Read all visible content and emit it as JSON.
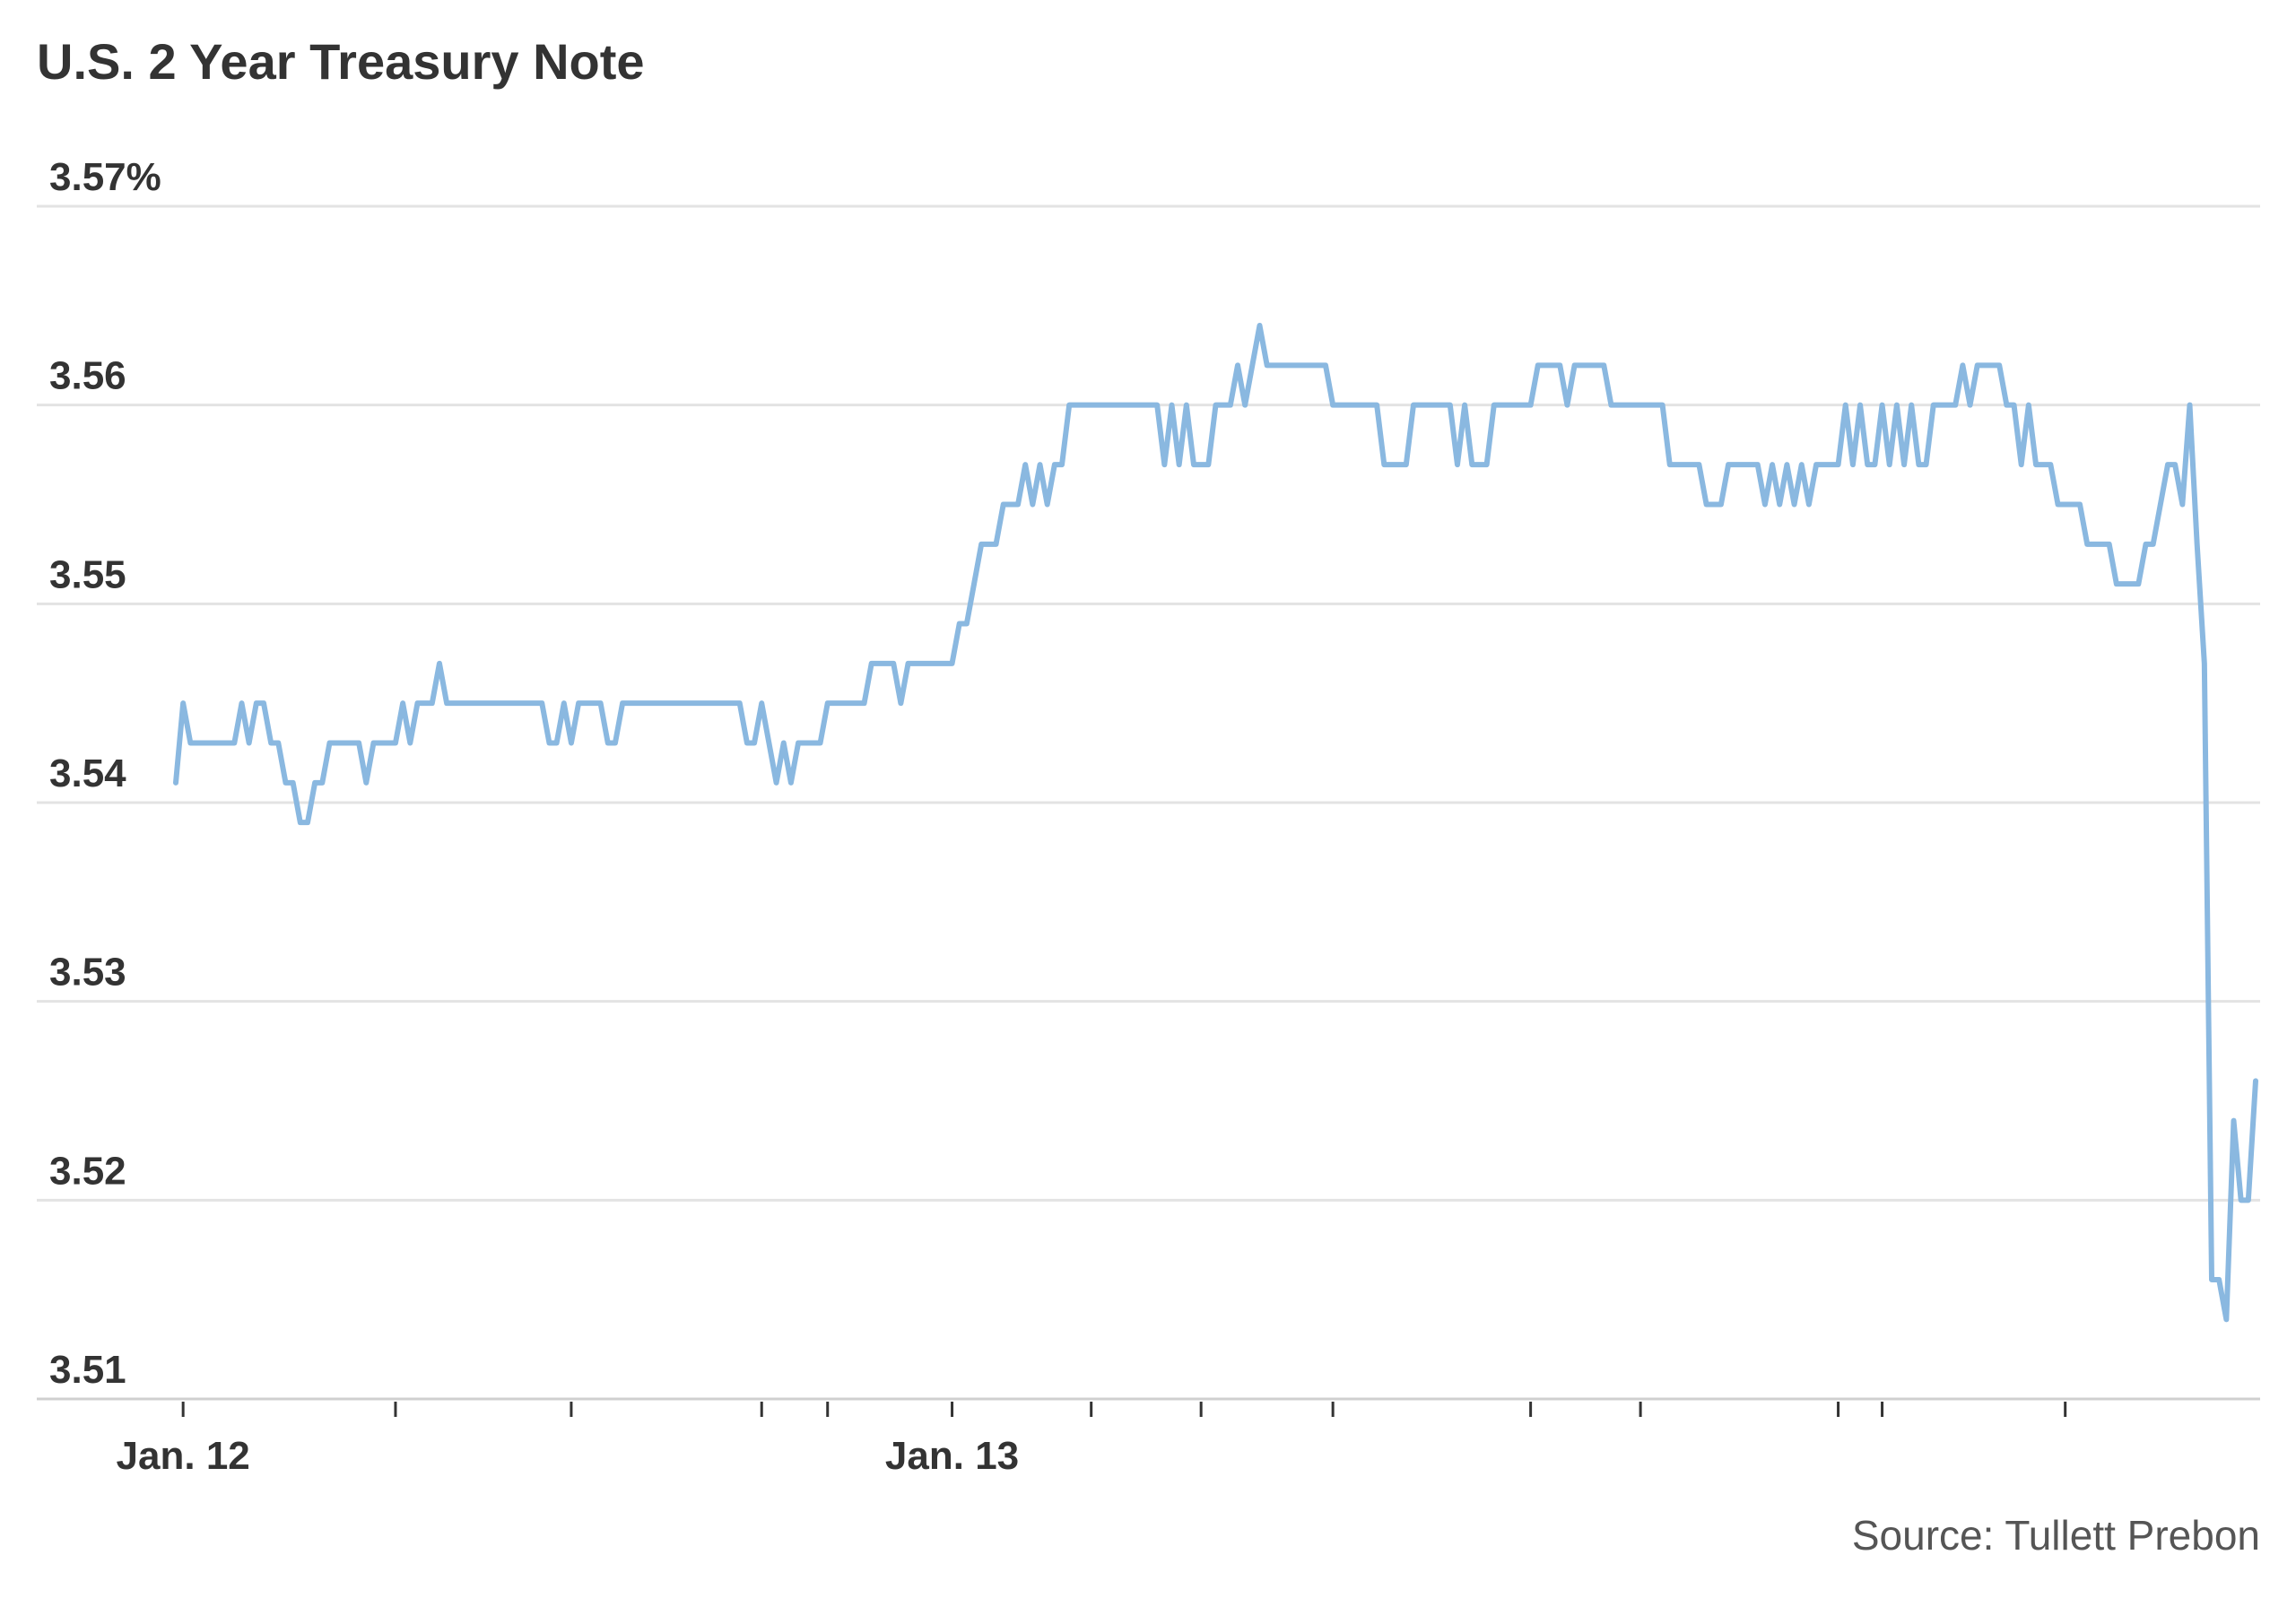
{
  "chart_data": {
    "type": "line",
    "title": "U.S. 2 Year Treasury Note",
    "source": "Source: Tullett Prebon",
    "categories": [
      null,
      "Jan. 12",
      null,
      null,
      null,
      null,
      null,
      null,
      null,
      null,
      null,
      null,
      null,
      null,
      null,
      null,
      null,
      null,
      null,
      null,
      null,
      null,
      null,
      null,
      null,
      null,
      null,
      null,
      null,
      null,
      null,
      null,
      null,
      null,
      null,
      null,
      null,
      null,
      null,
      null,
      null,
      null,
      null,
      null,
      null,
      null,
      null,
      null,
      null,
      null,
      null,
      null,
      null,
      null,
      null,
      null,
      null,
      null,
      null,
      null,
      null,
      null,
      null,
      null,
      null,
      null,
      null,
      null,
      null,
      null,
      null,
      null,
      null,
      null,
      null,
      null,
      null,
      null,
      null,
      null,
      null,
      null,
      null,
      null,
      null,
      null,
      null,
      null,
      null,
      null,
      null,
      null,
      null,
      null,
      null,
      null,
      null,
      null,
      null,
      null,
      null,
      null,
      null,
      null,
      null,
      null,
      "Jan. 13",
      null,
      null,
      null,
      null,
      null,
      null,
      null,
      null,
      null,
      null,
      null,
      null,
      null,
      null,
      null,
      null,
      null,
      null,
      null,
      null,
      null,
      null,
      null,
      null,
      null,
      null,
      null,
      null,
      null,
      null,
      null,
      null,
      null,
      null,
      null,
      null,
      null,
      null,
      null,
      null,
      null,
      null,
      null,
      null,
      null,
      null,
      null,
      null,
      null,
      null,
      null,
      null,
      null,
      null,
      null,
      null,
      null,
      null,
      null,
      null,
      null,
      null,
      null,
      null,
      null,
      null,
      null,
      null,
      null,
      null,
      null,
      null,
      null,
      null,
      null,
      null,
      null,
      null,
      null,
      null,
      null,
      null,
      null,
      null,
      null,
      null,
      null,
      null,
      null,
      null,
      null,
      null,
      null,
      null,
      null,
      null,
      null,
      null,
      null,
      null,
      null,
      null,
      null,
      null,
      null,
      null,
      null,
      null,
      null,
      null,
      null,
      null,
      null,
      null,
      null,
      null,
      null,
      null,
      null,
      null,
      null,
      null,
      null,
      null,
      null,
      null,
      null,
      null,
      null,
      null,
      null,
      null,
      null,
      null,
      null,
      null,
      null,
      null,
      null,
      null,
      null,
      null,
      null,
      null,
      null,
      null,
      null,
      null,
      null,
      null,
      null,
      null,
      null,
      null,
      null,
      null,
      null,
      null,
      null,
      null,
      null,
      null,
      null,
      null,
      null,
      null,
      null,
      null,
      null,
      null,
      null,
      null,
      null,
      null,
      null,
      null,
      null,
      null
    ],
    "xticks": [
      1,
      30,
      54,
      80,
      89,
      106,
      125,
      140,
      158,
      185,
      200,
      227,
      233,
      258
    ],
    "series": [
      {
        "name": "U.S. 2 Year Treasury Note",
        "color": "#8ab8e0",
        "values": [
          3.541,
          3.545,
          3.543,
          3.543,
          3.543,
          3.543,
          3.543,
          3.543,
          3.543,
          3.545,
          3.543,
          3.545,
          3.545,
          3.543,
          3.543,
          3.541,
          3.541,
          3.539,
          3.539,
          3.541,
          3.541,
          3.543,
          3.543,
          3.543,
          3.543,
          3.543,
          3.541,
          3.543,
          3.543,
          3.543,
          3.543,
          3.545,
          3.543,
          3.545,
          3.545,
          3.545,
          3.547,
          3.545,
          3.545,
          3.545,
          3.545,
          3.545,
          3.545,
          3.545,
          3.545,
          3.545,
          3.545,
          3.545,
          3.545,
          3.545,
          3.545,
          3.543,
          3.543,
          3.545,
          3.543,
          3.545,
          3.545,
          3.545,
          3.545,
          3.543,
          3.543,
          3.545,
          3.545,
          3.545,
          3.545,
          3.545,
          3.545,
          3.545,
          3.545,
          3.545,
          3.545,
          3.545,
          3.545,
          3.545,
          3.545,
          3.545,
          3.545,
          3.545,
          3.543,
          3.543,
          3.545,
          3.543,
          3.541,
          3.543,
          3.541,
          3.543,
          3.543,
          3.543,
          3.543,
          3.545,
          3.545,
          3.545,
          3.545,
          3.545,
          3.545,
          3.547,
          3.547,
          3.547,
          3.547,
          3.545,
          3.547,
          3.547,
          3.547,
          3.547,
          3.547,
          3.547,
          3.547,
          3.549,
          3.549,
          3.551,
          3.553,
          3.553,
          3.553,
          3.555,
          3.555,
          3.555,
          3.557,
          3.555,
          3.557,
          3.555,
          3.557,
          3.557,
          3.56,
          3.56,
          3.56,
          3.56,
          3.56,
          3.56,
          3.56,
          3.56,
          3.56,
          3.56,
          3.56,
          3.56,
          3.56,
          3.557,
          3.56,
          3.557,
          3.56,
          3.557,
          3.557,
          3.557,
          3.56,
          3.56,
          3.56,
          3.562,
          3.56,
          3.562,
          3.564,
          3.562,
          3.562,
          3.562,
          3.562,
          3.562,
          3.562,
          3.562,
          3.562,
          3.562,
          3.56,
          3.56,
          3.56,
          3.56,
          3.56,
          3.56,
          3.56,
          3.557,
          3.557,
          3.557,
          3.557,
          3.56,
          3.56,
          3.56,
          3.56,
          3.56,
          3.56,
          3.557,
          3.56,
          3.557,
          3.557,
          3.557,
          3.56,
          3.56,
          3.56,
          3.56,
          3.56,
          3.56,
          3.562,
          3.562,
          3.562,
          3.562,
          3.56,
          3.562,
          3.562,
          3.562,
          3.562,
          3.562,
          3.56,
          3.56,
          3.56,
          3.56,
          3.56,
          3.56,
          3.56,
          3.56,
          3.557,
          3.557,
          3.557,
          3.557,
          3.557,
          3.555,
          3.555,
          3.555,
          3.557,
          3.557,
          3.557,
          3.557,
          3.557,
          3.555,
          3.557,
          3.555,
          3.557,
          3.555,
          3.557,
          3.555,
          3.557,
          3.557,
          3.557,
          3.557,
          3.56,
          3.557,
          3.56,
          3.557,
          3.557,
          3.56,
          3.557,
          3.56,
          3.557,
          3.56,
          3.557,
          3.557,
          3.56,
          3.56,
          3.56,
          3.56,
          3.562,
          3.56,
          3.562,
          3.562,
          3.562,
          3.562,
          3.56,
          3.56,
          3.557,
          3.56,
          3.557,
          3.557,
          3.557,
          3.555,
          3.555,
          3.555,
          3.555,
          3.553,
          3.553,
          3.553,
          3.553,
          3.551,
          3.551,
          3.551,
          3.551,
          3.553,
          3.553,
          3.555,
          3.557,
          3.557,
          3.555,
          3.56,
          3.553,
          3.547,
          3.516,
          3.516,
          3.514,
          3.524,
          3.52,
          3.52,
          3.526
        ]
      }
    ],
    "ylim": [
      3.51,
      3.57
    ],
    "yticks": [
      3.51,
      3.52,
      3.53,
      3.54,
      3.55,
      3.56,
      {
        "value": 3.57,
        "label": "3.57%"
      }
    ],
    "grid": true
  }
}
